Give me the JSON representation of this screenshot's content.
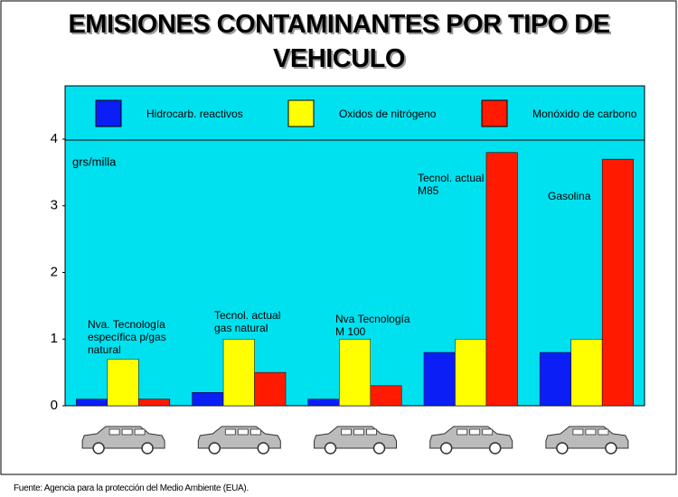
{
  "chart_data": {
    "type": "bar",
    "title": "EMISIONES CONTAMINANTES POR TIPO DE\nVEHICULO",
    "y_label": "grs/milla",
    "categories": [
      "Nva. Tecnología\nespecífica p/gas\nnatural",
      "Tecnol. actual\ngas natural",
      "Nva Tecnología\nM 100",
      "Tecnol. actual\nM85",
      "Gasolina"
    ],
    "series": [
      {
        "name": "Hidrocarb. reactivos",
        "color": "#0a1ef5",
        "values": [
          0.1,
          0.2,
          0.1,
          0.8,
          0.8
        ]
      },
      {
        "name": "Oxidos de nitrógeno",
        "color": "#ffff00",
        "values": [
          0.7,
          1.0,
          1.0,
          1.0,
          1.0
        ]
      },
      {
        "name": "Monóxido de carbono",
        "color": "#ff1a00",
        "values": [
          0.1,
          0.5,
          0.3,
          3.8,
          3.7
        ]
      }
    ],
    "ylim": [
      0,
      4.8
    ],
    "yticks": [
      0,
      1,
      2,
      3,
      4
    ],
    "legend": "top",
    "background": "#00e1f0",
    "source": "Fuente: Agencia para la protección del Medio Ambiente (EUA)."
  }
}
